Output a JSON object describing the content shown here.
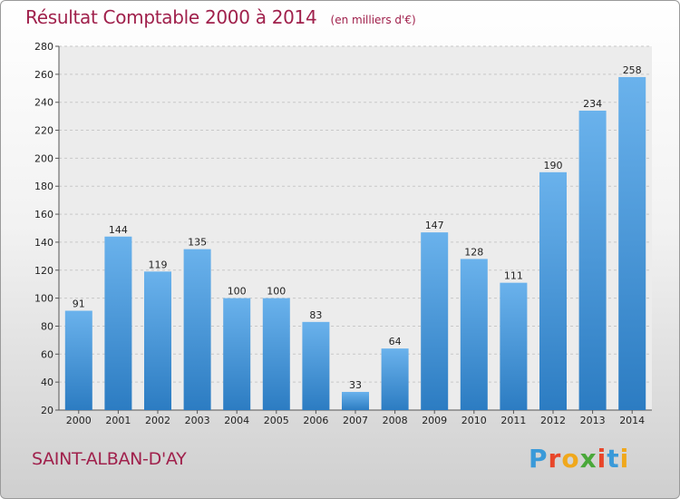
{
  "header": {
    "title": "Résultat Comptable 2000 à 2014",
    "subtitle": "(en milliers d'€)"
  },
  "footer": {
    "place": "SAINT-ALBAN-D'AY",
    "logo_letters": [
      "P",
      "r",
      "o",
      "x",
      "i",
      "t",
      "i"
    ],
    "logo_colors": [
      "#3a9ad9",
      "#e8462a",
      "#f0a81c",
      "#4aa83a",
      "#e8462a",
      "#3a9ad9",
      "#f0a81c"
    ]
  },
  "chart_data": {
    "type": "bar",
    "title": "Résultat Comptable 2000 à 2014",
    "subtitle": "(en milliers d'€)",
    "categories": [
      "2000",
      "2001",
      "2002",
      "2003",
      "2004",
      "2005",
      "2006",
      "2007",
      "2008",
      "2009",
      "2010",
      "2011",
      "2012",
      "2013",
      "2014"
    ],
    "values": [
      91,
      144,
      119,
      135,
      100,
      100,
      83,
      33,
      64,
      147,
      128,
      111,
      190,
      234,
      258
    ],
    "ylim": [
      20,
      280
    ],
    "yticks": [
      20,
      40,
      60,
      80,
      100,
      120,
      140,
      160,
      180,
      200,
      220,
      240,
      260,
      280
    ],
    "grid": true,
    "bar_color_top": "#6ab2ec",
    "bar_color_bottom": "#2c7cc2"
  }
}
